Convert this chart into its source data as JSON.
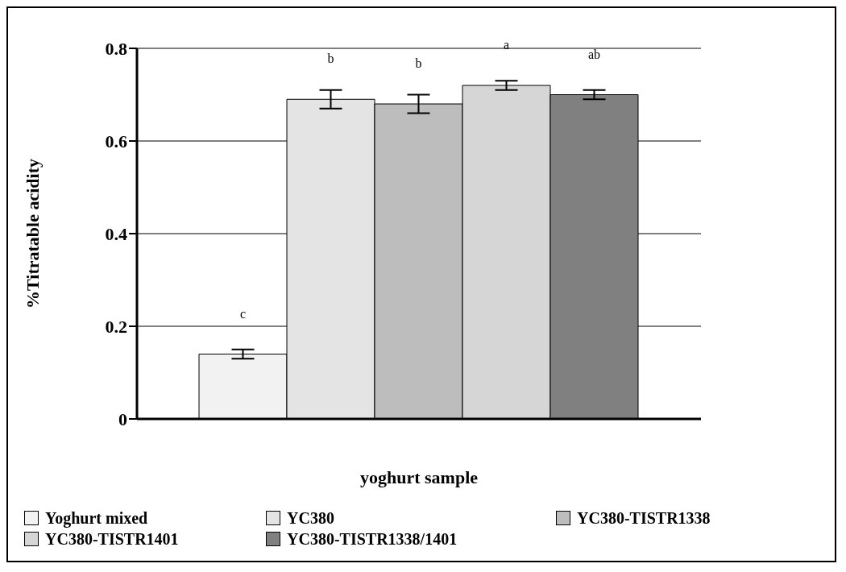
{
  "chart_data": {
    "type": "bar",
    "ylabel": "%Titratable acidity",
    "xlabel": "yoghurt sample",
    "categories": [
      null
    ],
    "ylim": [
      0,
      0.8
    ],
    "yticks": [
      0,
      0.2,
      0.4,
      0.6,
      0.8
    ],
    "grid": "y",
    "legend": "bottom",
    "series": [
      {
        "name": "Yoghurt mixed",
        "color": "#f2f2f2",
        "values": [
          0.14
        ],
        "errors": [
          0.01
        ]
      },
      {
        "name": "YC380",
        "color": "#e4e4e4",
        "values": [
          0.69
        ],
        "errors": [
          0.02
        ]
      },
      {
        "name": "YC380-TISTR1338",
        "color": "#bdbdbd",
        "values": [
          0.68
        ],
        "errors": [
          0.02
        ]
      },
      {
        "name": "YC380-TISTR1401",
        "color": "#d6d6d6",
        "values": [
          0.72
        ],
        "errors": [
          0.01
        ]
      },
      {
        "name": "YC380-TISTR1338/1401",
        "color": "#808080",
        "values": [
          0.7
        ],
        "errors": [
          0.01
        ]
      }
    ],
    "annotations": [
      "c",
      "b",
      "b",
      "a",
      "ab"
    ]
  }
}
